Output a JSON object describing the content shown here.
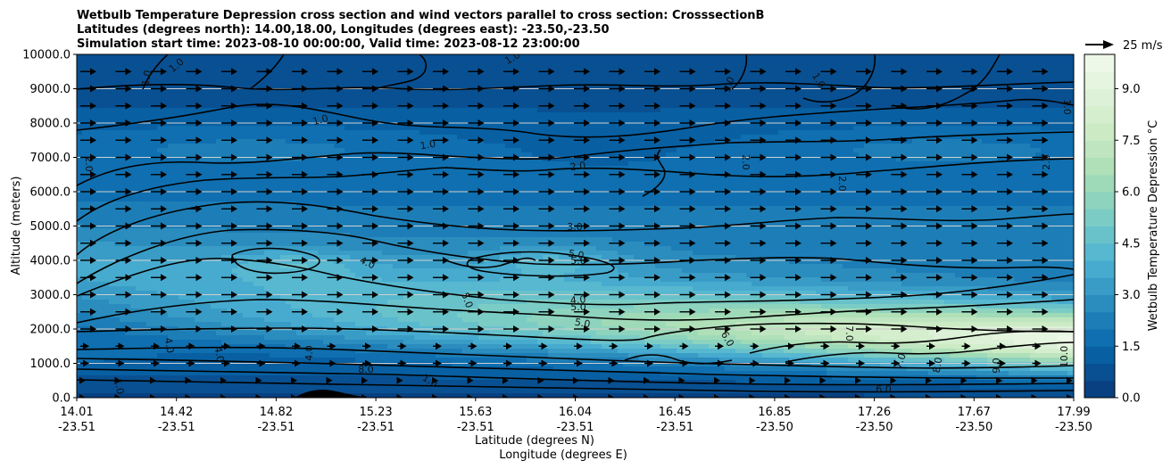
{
  "chart_data": {
    "type": "heatmap",
    "title_lines": [
      "Wetbulb Temperature Depression cross section and wind vectors parallel to cross section: CrosssectionB",
      "Latitudes (degrees north): 14.00,18.00, Longitudes (degrees east): -23.50,-23.50",
      "Simulation start time: 2023-08-10 00:00:00, Valid time: 2023-08-12 23:00:00"
    ],
    "ylabel": "Altitude (meters)",
    "xlabel_lines": [
      "Latitude (degrees N)",
      "Longitude (degrees E)"
    ],
    "ylim": [
      0,
      10000
    ],
    "yticks": [
      "0.0",
      "1000.0",
      "2000.0",
      "3000.0",
      "4000.0",
      "5000.0",
      "6000.0",
      "7000.0",
      "8000.0",
      "9000.0",
      "10000.0"
    ],
    "xticks": [
      {
        "lat": "14.01",
        "lon": "-23.51"
      },
      {
        "lat": "14.42",
        "lon": "-23.51"
      },
      {
        "lat": "14.82",
        "lon": "-23.51"
      },
      {
        "lat": "15.23",
        "lon": "-23.51"
      },
      {
        "lat": "15.63",
        "lon": "-23.51"
      },
      {
        "lat": "16.04",
        "lon": "-23.51"
      },
      {
        "lat": "16.45",
        "lon": "-23.51"
      },
      {
        "lat": "16.85",
        "lon": "-23.50"
      },
      {
        "lat": "17.26",
        "lon": "-23.50"
      },
      {
        "lat": "17.67",
        "lon": "-23.50"
      },
      {
        "lat": "17.99",
        "lon": "-23.50"
      }
    ],
    "grid": "horizontal",
    "colorbar": {
      "label": "Wetbulb Temperature Depression °C",
      "range": [
        0,
        10
      ],
      "ticks": [
        "0.0",
        "1.5",
        "3.0",
        "4.5",
        "6.0",
        "7.5",
        "9.0"
      ],
      "colormap": "GnBu_r"
    },
    "quiver_key": "25 m/s",
    "contour_labels": [
      "1.0",
      "2.0",
      "3.0",
      "4.0",
      "5.0",
      "6.0",
      "7.0",
      "8.0",
      "9.0",
      "10.0"
    ]
  }
}
